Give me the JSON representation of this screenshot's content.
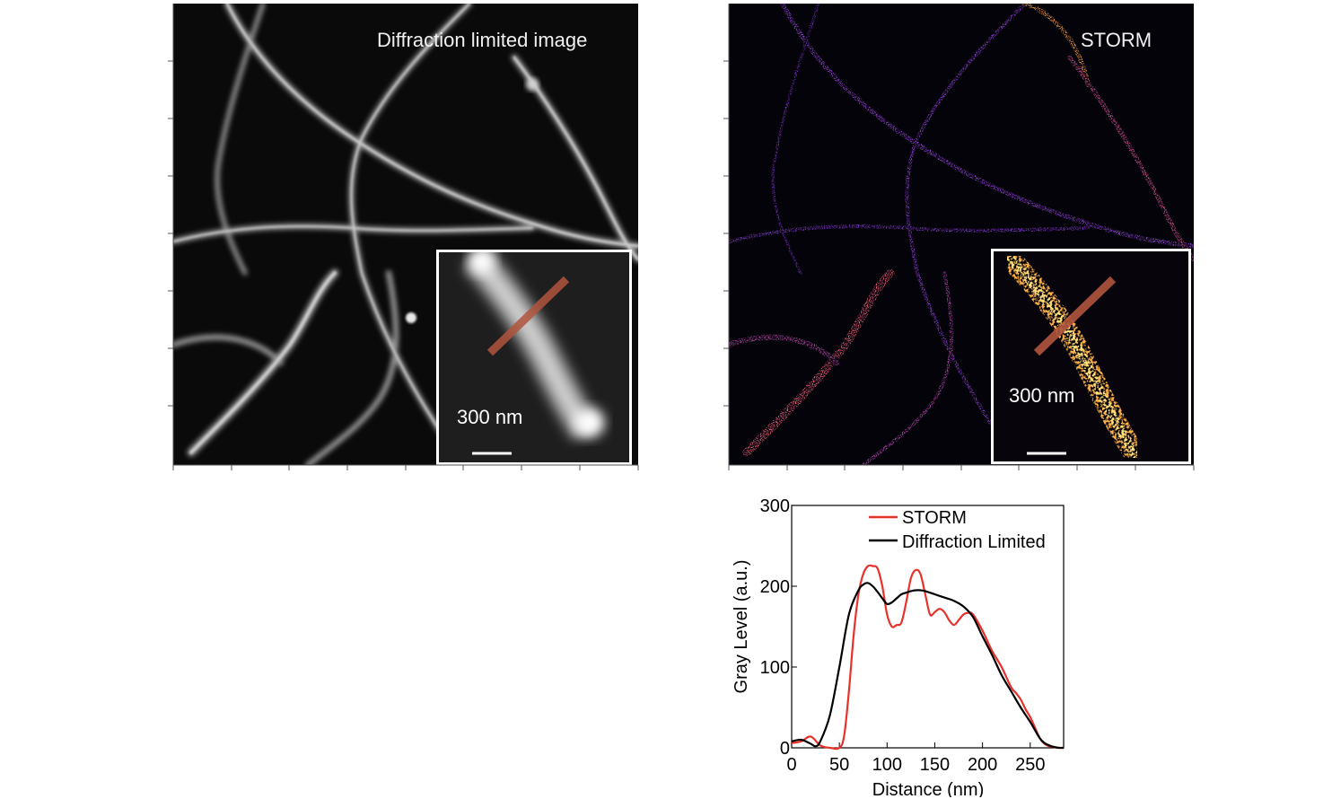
{
  "panels": {
    "left": {
      "label": "Diffraction limited image",
      "inset_scale_label": "300 nm"
    },
    "right": {
      "label": "STORM",
      "inset_scale_label": "300 nm"
    }
  },
  "colors": {
    "storm": "#e8312a",
    "diffraction": "#000000",
    "line_profile_marker": "#b0553e"
  },
  "chart_data": {
    "type": "line",
    "xlabel": "Distance (nm)",
    "ylabel": "Gray Level (a.u.)",
    "xlim": [
      0,
      285
    ],
    "ylim": [
      0,
      300
    ],
    "xticks": [
      0,
      50,
      100,
      150,
      200,
      250
    ],
    "yticks": [
      0,
      100,
      200,
      300
    ],
    "legend_position": "top-right",
    "series": [
      {
        "name": "STORM",
        "color": "#e8312a",
        "x": [
          0,
          10,
          20,
          30,
          40,
          50,
          55,
          60,
          65,
          70,
          75,
          80,
          85,
          90,
          95,
          100,
          105,
          110,
          115,
          120,
          125,
          130,
          135,
          140,
          145,
          150,
          155,
          160,
          165,
          170,
          175,
          180,
          185,
          190,
          200,
          210,
          220,
          230,
          235,
          240,
          245,
          250,
          255,
          260,
          265,
          270,
          275,
          280,
          285
        ],
        "y": [
          6,
          8,
          14,
          3,
          0,
          0,
          15,
          70,
          140,
          190,
          215,
          225,
          225,
          222,
          200,
          165,
          150,
          152,
          155,
          180,
          210,
          220,
          215,
          190,
          165,
          168,
          172,
          168,
          158,
          152,
          158,
          165,
          167,
          165,
          145,
          120,
          100,
          75,
          68,
          60,
          48,
          38,
          25,
          12,
          5,
          2,
          1,
          0,
          0
        ]
      },
      {
        "name": "Diffraction Limited",
        "color": "#000000",
        "x": [
          0,
          10,
          20,
          25,
          30,
          40,
          50,
          60,
          70,
          75,
          80,
          85,
          90,
          95,
          100,
          105,
          110,
          115,
          120,
          125,
          130,
          135,
          140,
          150,
          160,
          170,
          180,
          190,
          200,
          210,
          220,
          230,
          240,
          250,
          260,
          265,
          270,
          275,
          280,
          285
        ],
        "y": [
          8,
          10,
          5,
          2,
          8,
          40,
          100,
          165,
          195,
          202,
          204,
          200,
          193,
          185,
          178,
          180,
          185,
          190,
          192,
          194,
          195,
          195,
          194,
          190,
          186,
          182,
          175,
          162,
          138,
          115,
          90,
          70,
          50,
          32,
          12,
          6,
          3,
          1,
          0,
          0
        ]
      }
    ]
  }
}
